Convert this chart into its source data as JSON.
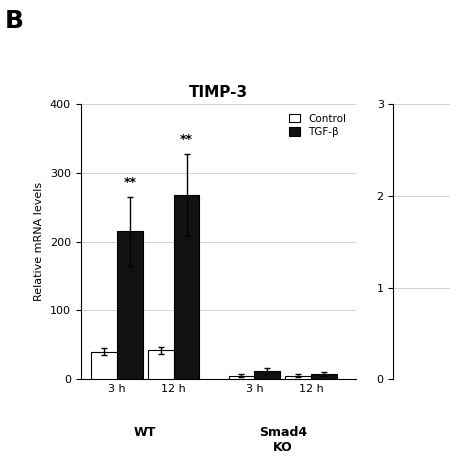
{
  "title": "TIMP-3",
  "ylabel": "Relative mRNA levels",
  "ylim": [
    0,
    400
  ],
  "yticks": [
    0,
    100,
    200,
    300,
    400
  ],
  "panel_label": "B",
  "time_labels": [
    "3 h",
    "12 h",
    "3 h",
    "12 h"
  ],
  "control_values": [
    40,
    42,
    5,
    5
  ],
  "tgfb_values": [
    215,
    268,
    12,
    8
  ],
  "control_errors": [
    5,
    5,
    2,
    2
  ],
  "tgfb_errors": [
    50,
    60,
    5,
    3
  ],
  "significance": [
    true,
    true,
    false,
    false
  ],
  "bar_width": 0.32,
  "control_color": "white",
  "tgfb_color": "#111111",
  "legend_labels": [
    "Control",
    "TGF-β"
  ],
  "background_color": "white",
  "fig_width": 4.74,
  "fig_height": 4.74,
  "right_ylim": [
    0,
    3
  ],
  "right_yticks": [
    0,
    1,
    2,
    3
  ]
}
